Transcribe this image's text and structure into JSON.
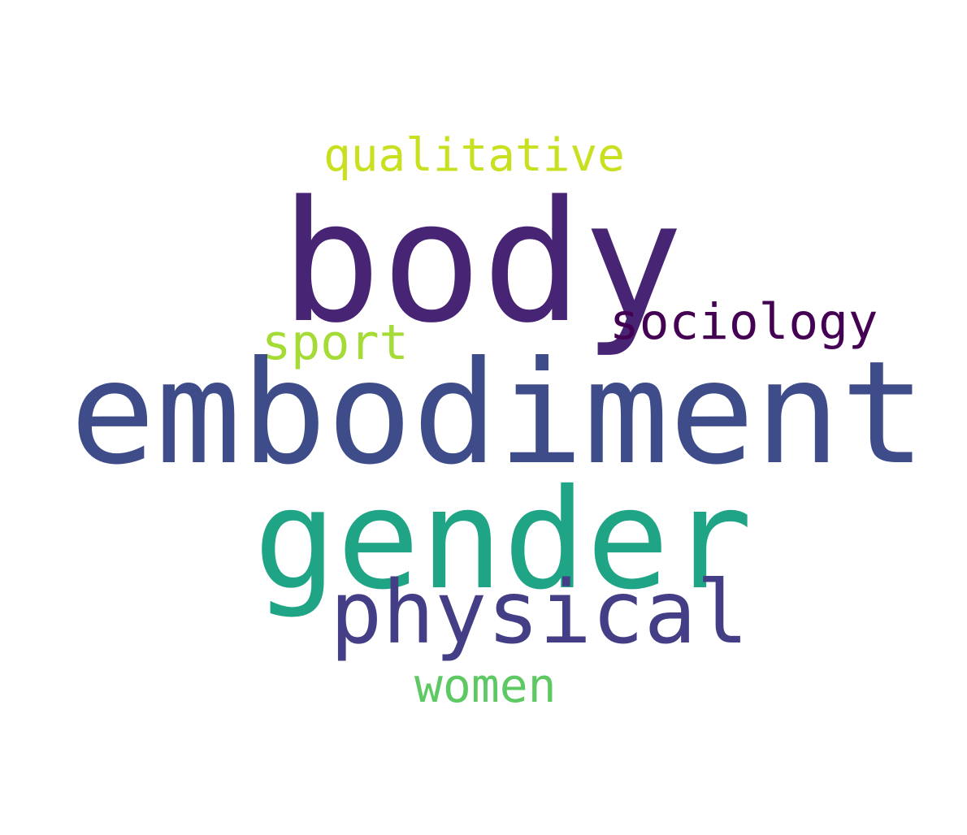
{
  "words": [
    {
      "text": "qualitative",
      "color": "#c8e020"
    },
    {
      "text": "body",
      "color": "#482475"
    },
    {
      "text": "sociology",
      "color": "#440154"
    },
    {
      "text": "sport",
      "color": "#a5db36"
    },
    {
      "text": "embodiment",
      "color": "#3e4c8a"
    },
    {
      "text": "gender",
      "color": "#20a486"
    },
    {
      "text": "physical",
      "color": "#433e85"
    },
    {
      "text": "women",
      "color": "#5ec962"
    }
  ]
}
